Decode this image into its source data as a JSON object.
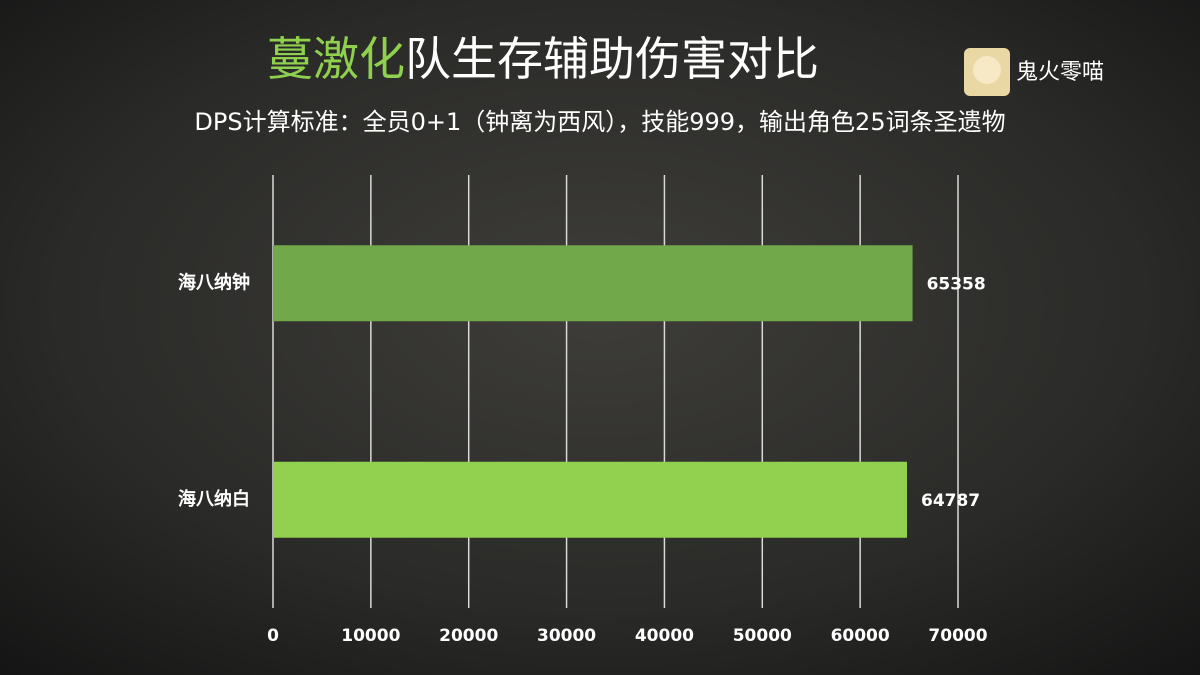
{
  "logo_text": "鬼火零喵",
  "chart_data": {
    "type": "bar",
    "orientation": "horizontal",
    "title": [
      "蔓激化",
      "队生存辅助伤害对比"
    ],
    "title_colors": [
      "#8fd14f",
      "#ffffff"
    ],
    "subtitle": "DPS计算标准：全员0+1（钟离为西风），技能999，输出角色25词条圣遗物",
    "categories": [
      "海八纳钟",
      "海八纳白"
    ],
    "values": [
      65358,
      64787
    ],
    "colors": [
      "#70a84a",
      "#92d050"
    ],
    "xlim": [
      0,
      70000
    ],
    "xticks": [
      0,
      10000,
      20000,
      30000,
      40000,
      50000,
      60000,
      70000
    ],
    "grid": true
  }
}
